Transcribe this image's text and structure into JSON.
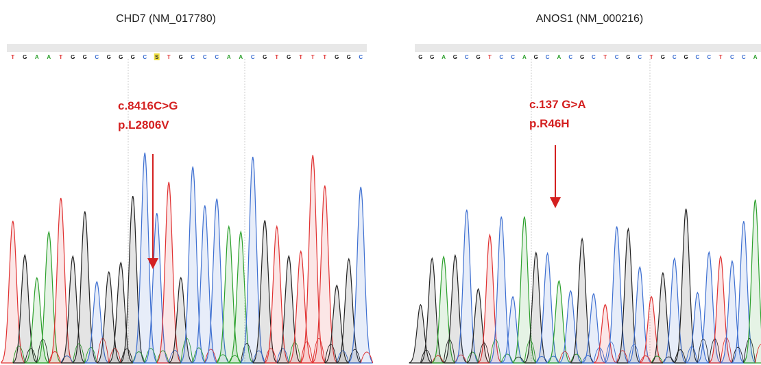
{
  "panels": [
    {
      "title": "CHD7 (NM_017780)",
      "bases": [
        "T",
        "G",
        "A",
        "A",
        "T",
        "G",
        "G",
        "C",
        "G",
        "G",
        "G",
        "C",
        "S",
        "T",
        "G",
        "C",
        "C",
        "C",
        "A",
        "A",
        "C",
        "G",
        "T",
        "G",
        "T",
        "T",
        "T",
        "G",
        "G",
        "C"
      ],
      "annotation": [
        "c.8416C>G",
        "p.L2806V"
      ]
    },
    {
      "title": "ANOS1 (NM_000216)",
      "bases": [
        "G",
        "G",
        "A",
        "G",
        "C",
        "G",
        "T",
        "C",
        "C",
        "A",
        "G",
        "C",
        "A",
        "C",
        "G",
        "C",
        "T",
        "C",
        "G",
        "C",
        "T",
        "G",
        "C",
        "G",
        "C",
        "C",
        "T",
        "C",
        "C",
        "A"
      ],
      "annotation": [
        "c.137 G>A",
        "p.R46H"
      ]
    }
  ]
}
